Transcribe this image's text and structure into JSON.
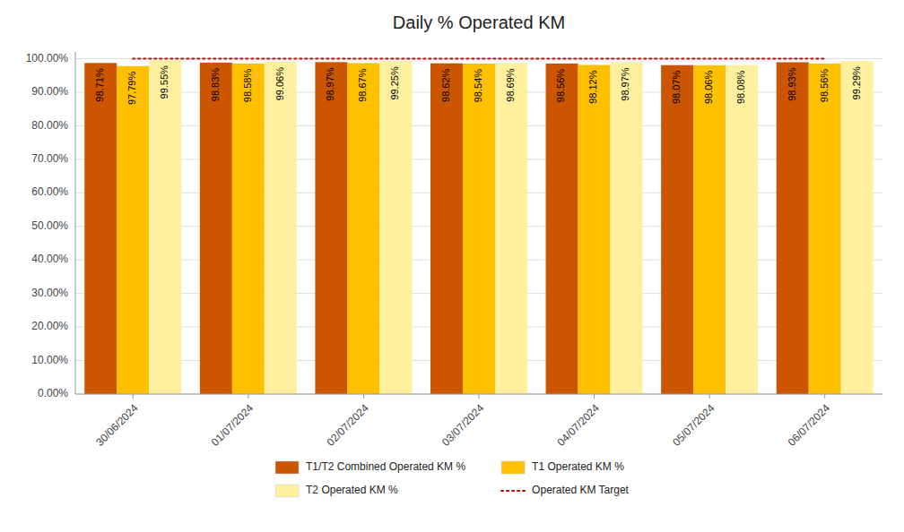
{
  "chart_data": {
    "type": "bar",
    "title": "Daily % Operated KM",
    "categories": [
      "30/06/2024",
      "01/07/2024",
      "02/07/2024",
      "03/07/2024",
      "04/07/2024",
      "05/07/2024",
      "06/07/2024"
    ],
    "series": [
      {
        "name": "T1/T2 Combined Operated KM %",
        "type": "bar",
        "color": "#CC5500",
        "values": [
          98.71,
          98.83,
          98.97,
          98.62,
          98.56,
          98.07,
          98.93
        ],
        "value_labels": [
          "98.71%",
          "98.83%",
          "98.97%",
          "98.62%",
          "98.56%",
          "98.07%",
          "98.93%"
        ]
      },
      {
        "name": "T1 Operated KM %",
        "type": "bar",
        "color": "#FFC000",
        "values": [
          97.79,
          98.58,
          98.67,
          98.54,
          98.12,
          98.06,
          98.56
        ],
        "value_labels": [
          "97.79%",
          "98.58%",
          "98.67%",
          "98.54%",
          "98.12%",
          "98.06%",
          "98.56%"
        ]
      },
      {
        "name": "T2 Operated KM %",
        "type": "bar",
        "color": "#FFF0A0",
        "values": [
          99.55,
          99.06,
          99.25,
          98.69,
          98.97,
          98.08,
          99.29
        ],
        "value_labels": [
          "99.55%",
          "99.06%",
          "99.25%",
          "98.69%",
          "98.97%",
          "98.08%",
          "99.29%"
        ]
      },
      {
        "name": "Operated KM Target",
        "type": "line",
        "color": "#CC0000",
        "line_style": "dotted",
        "values": [
          100.0,
          100.0,
          100.0,
          100.0,
          100.0,
          100.0,
          100.0
        ]
      }
    ],
    "ylim": [
      0,
      102
    ],
    "yticks": [
      {
        "value": 0,
        "label": "0.00%"
      },
      {
        "value": 10,
        "label": "10.00%"
      },
      {
        "value": 20,
        "label": "20.00%"
      },
      {
        "value": 30,
        "label": "30.00%"
      },
      {
        "value": 40,
        "label": "40.00%"
      },
      {
        "value": 50,
        "label": "50.00%"
      },
      {
        "value": 60,
        "label": "60.00%"
      },
      {
        "value": 70,
        "label": "70.00%"
      },
      {
        "value": 80,
        "label": "80.00%"
      },
      {
        "value": 90,
        "label": "90.00%"
      },
      {
        "value": 100,
        "label": "100.00%"
      }
    ],
    "grid": true,
    "legend": "bottom",
    "data_labels": true
  }
}
